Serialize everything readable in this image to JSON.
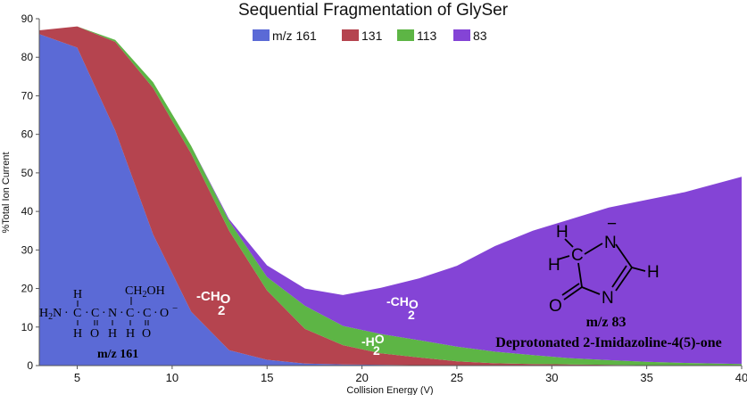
{
  "chart_data": {
    "type": "area",
    "stacked": true,
    "title": "Sequential Fragmentation of GlySer",
    "xlabel": "Collision Energy (V)",
    "ylabel": "%Total Ion Current",
    "xlim": [
      3,
      40
    ],
    "ylim": [
      0,
      90
    ],
    "xticks": [
      "5",
      "10",
      "15",
      "20",
      "25",
      "30",
      "35",
      "40"
    ],
    "yticks": [
      "0",
      "10",
      "20",
      "30",
      "40",
      "50",
      "60",
      "70",
      "80",
      "90"
    ],
    "grid": false,
    "legend_position": "top",
    "x": [
      3,
      5,
      7,
      9,
      11,
      13,
      15,
      17,
      19,
      21,
      23,
      25,
      27,
      29,
      31,
      33,
      35,
      37,
      40
    ],
    "series": [
      {
        "name": "m/z 161",
        "color": "#5b6ad6",
        "values": [
          86,
          82.5,
          61,
          34,
          14,
          4,
          1.5,
          0.5,
          0.3,
          0.2,
          0.1,
          0.1,
          0,
          0,
          0,
          0,
          0,
          0,
          0
        ]
      },
      {
        "name": "131",
        "color": "#b5444f",
        "values": [
          1,
          5.5,
          23,
          38,
          41,
          31,
          18,
          9,
          5,
          3,
          2,
          1,
          0.6,
          0.4,
          0.3,
          0.2,
          0.1,
          0.1,
          0
        ]
      },
      {
        "name": "113",
        "color": "#5db545",
        "values": [
          0,
          0,
          0.5,
          1.5,
          2,
          2.5,
          3.5,
          6,
          5,
          5,
          4.5,
          3.8,
          3,
          2.3,
          1.6,
          1.2,
          0.9,
          0.6,
          0.4
        ]
      },
      {
        "name": "83",
        "color": "#8444d6",
        "values": [
          0,
          0,
          0,
          0,
          0,
          0.5,
          3,
          4.5,
          8,
          12,
          16,
          21,
          27.4,
          32.3,
          36.1,
          39.6,
          42,
          44.3,
          48.6
        ]
      }
    ],
    "annotations": {
      "ch2o_1": {
        "text": "-CH",
        "sub": "2",
        "tail": "O"
      },
      "ch2o_2": {
        "text": "-CH",
        "sub": "2",
        "tail": "O"
      },
      "h2o": {
        "text": "-H",
        "sub": "2",
        "tail": "O"
      },
      "glyser_label": "m/z 161",
      "imid_label": "m/z 83",
      "imid_name": "Deprotonated 2-Imidazoline-4(5)-one"
    },
    "structures": {
      "glyser": {
        "h_top": "H",
        "ch2oh": "CH2OH",
        "h2n": "H2N",
        "c": "C",
        "n": "N",
        "o": "O",
        "minus": "−",
        "h": "H"
      },
      "imid": {
        "h": "H",
        "c": "C",
        "n": "N",
        "o": "O",
        "minus": "−"
      }
    }
  }
}
